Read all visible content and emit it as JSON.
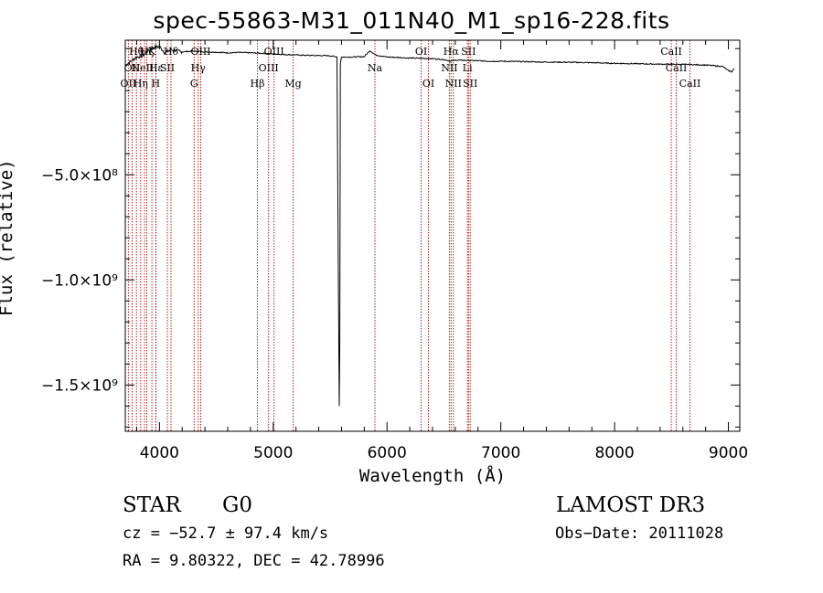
{
  "chart_data": {
    "type": "line",
    "title": "spec-55863-M31_011N40_M1_sp16-228.fits",
    "xlabel": "Wavelength (Å)",
    "ylabel": "Flux (relative)",
    "xlim": [
      3700,
      9100
    ],
    "ylim": [
      -1720000000.0,
      140000000.0
    ],
    "x_ticks": [
      {
        "value": 4000,
        "label": "4000"
      },
      {
        "value": 5000,
        "label": "5000"
      },
      {
        "value": 6000,
        "label": "6000"
      },
      {
        "value": 7000,
        "label": "7000"
      },
      {
        "value": 8000,
        "label": "8000"
      },
      {
        "value": 9000,
        "label": "9000"
      }
    ],
    "y_ticks": [
      {
        "value": -500000000.0,
        "label": "−5.0×10⁸"
      },
      {
        "value": -1000000000.0,
        "label": "−1.0×10⁹"
      },
      {
        "value": -1500000000.0,
        "label": "−1.5×10⁹"
      }
    ],
    "spectrum": {
      "x": [
        3700,
        3800,
        3850,
        3900,
        3950,
        4000,
        4050,
        4100,
        4200,
        4300,
        4400,
        4500,
        4600,
        4700,
        4800,
        4900,
        5000,
        5100,
        5200,
        5300,
        5400,
        5500,
        5560,
        5580,
        5585,
        5590,
        5600,
        5700,
        5800,
        5850,
        5900,
        6000,
        6100,
        6200,
        6300,
        6400,
        6500,
        6560,
        6600,
        6700,
        6800,
        6900,
        7000,
        7200,
        7400,
        7600,
        7800,
        8000,
        8200,
        8400,
        8500,
        8600,
        8800,
        8950,
        9000,
        9030,
        9050
      ],
      "y": [
        20000000.0,
        60000000.0,
        65000000.0,
        90000000.0,
        105000000.0,
        110000000.0,
        80000000.0,
        95000000.0,
        85000000.0,
        88000000.0,
        85000000.0,
        83000000.0,
        80000000.0,
        82000000.0,
        80000000.0,
        78000000.0,
        75000000.0,
        72000000.0,
        70000000.0,
        68000000.0,
        67000000.0,
        66000000.0,
        60000000.0,
        -1600000000.0,
        -1300000000.0,
        30000000.0,
        60000000.0,
        60000000.0,
        62000000.0,
        90000000.0,
        70000000.0,
        60000000.0,
        58000000.0,
        55000000.0,
        54000000.0,
        52000000.0,
        48000000.0,
        40000000.0,
        45000000.0,
        44000000.0,
        42000000.0,
        40000000.0,
        40000000.0,
        38000000.0,
        36000000.0,
        35000000.0,
        33000000.0,
        30000000.0,
        28000000.0,
        26000000.0,
        26000000.0,
        25000000.0,
        22000000.0,
        15000000.0,
        -5000000.0,
        -10000000.0,
        5000000.0
      ]
    },
    "lines": [
      {
        "x": 3727,
        "label": "OII",
        "row": 2
      },
      {
        "x": 3760,
        "label": "OII",
        "row": 1
      },
      {
        "x": 3798,
        "label": "Hθ",
        "row": 0
      },
      {
        "x": 3835,
        "label": "Hη",
        "row": 2
      },
      {
        "x": 3869,
        "label": "NeIII",
        "row": 1
      },
      {
        "x": 3889,
        "label": "Hζ",
        "row": 0
      },
      {
        "x": 3934,
        "label": "K",
        "row": 0
      },
      {
        "x": 3968,
        "label": "H",
        "row": 2
      },
      {
        "x": 3970,
        "label": "Hε",
        "row": 1
      },
      {
        "x": 4070,
        "label": "SII",
        "row": 1
      },
      {
        "x": 4102,
        "label": "Hδ",
        "row": 0
      },
      {
        "x": 4305,
        "label": "G",
        "row": 2
      },
      {
        "x": 4341,
        "label": "Hγ",
        "row": 1
      },
      {
        "x": 4363,
        "label": "OIII",
        "row": 0
      },
      {
        "x": 4861,
        "label": "Hβ",
        "row": 2
      },
      {
        "x": 4959,
        "label": "OIII",
        "row": 1
      },
      {
        "x": 5007,
        "label": "OIII",
        "row": 0
      },
      {
        "x": 5175,
        "label": "Mg",
        "row": 2
      },
      {
        "x": 5894,
        "label": "Na",
        "row": 1
      },
      {
        "x": 6300,
        "label": "OI",
        "row": 0
      },
      {
        "x": 6364,
        "label": "OI",
        "row": 2
      },
      {
        "x": 6548,
        "label": "NII",
        "row": 1
      },
      {
        "x": 6563,
        "label": "Hα",
        "row": 0
      },
      {
        "x": 6583,
        "label": "NII",
        "row": 2
      },
      {
        "x": 6707,
        "label": "Li",
        "row": 1
      },
      {
        "x": 6716,
        "label": "SII",
        "row": 0
      },
      {
        "x": 6731,
        "label": "SII",
        "row": 2
      },
      {
        "x": 8498,
        "label": "CaII",
        "row": 0
      },
      {
        "x": 8542,
        "label": "CaII",
        "row": 1
      },
      {
        "x": 8662,
        "label": "CaII",
        "row": 2
      }
    ]
  },
  "info": {
    "object_class": "STAR",
    "subclass": "G0",
    "survey": "LAMOST DR3",
    "cz": "cz = −52.7 ± 97.4 km/s",
    "obs_date": "Obs−Date: 20111028",
    "radec": "RA =   9.80322, DEC =  42.78996"
  },
  "colors": {
    "spectrum": "#000000",
    "line_marker": "#b22222",
    "axis": "#000000"
  }
}
